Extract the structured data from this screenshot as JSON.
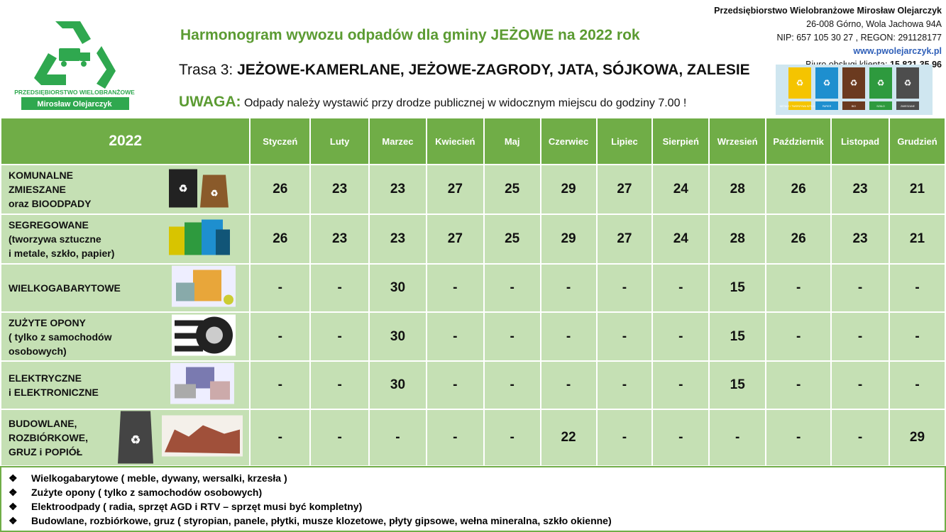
{
  "logo": {
    "line1": "PRZEDSIĘBIORSTWO WIELOBRANŻOWE",
    "line2": "Mirosław Olejarczyk"
  },
  "header": {
    "title": "Harmonogram wywozu odpadów dla gminy JEŻOWE na 2022 rok",
    "route_prefix": "Trasa 3:",
    "route": "JEŻOWE-KAMERLANE, JEŻOWE-ZAGRODY, JATA, SÓJKOWA, ZALESIE",
    "warning_label": "UWAGA:",
    "warning": "Odpady należy wystawić przy drodze publicznej w widocznym miejscu do godziny 7.00 !"
  },
  "company": {
    "name": "Przedsiębiorstwo Wielobranżowe Mirosław Olejarczyk",
    "address": "26-008 Górno, Wola Jachowa 94A",
    "ids": "NIP: 657 105 30 27 , REGON: 291128177",
    "website": "www.pwolejarczyk.pl",
    "phone_label": "Biuro obsługi klienta:",
    "phone": "15 821 35 96"
  },
  "bins": [
    {
      "color": "#f5c400",
      "label": "METALE I TWORZYWA SZTUCZNE"
    },
    {
      "color": "#1e8fcf",
      "label": "PAPIER"
    },
    {
      "color": "#6b3a1f",
      "label": "BIO"
    },
    {
      "color": "#2e9a3e",
      "label": "SZKŁO"
    },
    {
      "color": "#4d4d4d",
      "label": "ZMIESZANE"
    }
  ],
  "table": {
    "year": "2022",
    "months": [
      "Styczeń",
      "Luty",
      "Marzec",
      "Kwiecień",
      "Maj",
      "Czerwiec",
      "Lipiec",
      "Sierpień",
      "Wrzesień",
      "Październik",
      "Listopad",
      "Grudzień"
    ],
    "rows": [
      {
        "label": [
          "KOMUNALNE",
          "ZMIESZANE",
          "oraz BIOODPADY"
        ],
        "icon": "mixed-waste-bin-and-bio-bag-icon",
        "values": [
          "26",
          "23",
          "23",
          "27",
          "25",
          "29",
          "27",
          "24",
          "28",
          "26",
          "23",
          "21"
        ]
      },
      {
        "label": [
          "SEGREGOWANE",
          "(tworzywa sztuczne",
          "i metale, szkło, papier)"
        ],
        "icon": "segregation-bins-icon",
        "values": [
          "26",
          "23",
          "23",
          "27",
          "25",
          "29",
          "27",
          "24",
          "28",
          "26",
          "23",
          "21"
        ]
      },
      {
        "label": [
          "WIELKOGABARYTOWE"
        ],
        "icon": "bulky-furniture-icon",
        "values": [
          "-",
          "-",
          "30",
          "-",
          "-",
          "-",
          "-",
          "-",
          "15",
          "-",
          "-",
          "-"
        ]
      },
      {
        "label": [
          "ZUŻYTE OPONY",
          "( tylko z samochodów",
          "osobowych)"
        ],
        "icon": "tires-icon",
        "values": [
          "-",
          "-",
          "30",
          "-",
          "-",
          "-",
          "-",
          "-",
          "15",
          "-",
          "-",
          "-"
        ]
      },
      {
        "label": [
          "ELEKTRYCZNE",
          " i ELEKTRONICZNE"
        ],
        "icon": "electronics-icon",
        "values": [
          "-",
          "-",
          "30",
          "-",
          "-",
          "-",
          "-",
          "-",
          "15",
          "-",
          "-",
          "-"
        ]
      },
      {
        "label": [
          "BUDOWLANE,",
          "ROZBIÓRKOWE,",
          "GRUZ i POPIÓŁ"
        ],
        "icon": "rubble-bag-icon",
        "values": [
          "-",
          "-",
          "-",
          "-",
          "-",
          "22",
          "-",
          "-",
          "-",
          "-",
          "-",
          "29"
        ]
      }
    ]
  },
  "notes": [
    "Wielkogabarytowe ( meble, dywany, wersalki, krzesła )",
    "Zużyte opony ( tylko z samochodów osobowych)",
    "Elektroodpady ( radia, sprzęt AGD i RTV – sprzęt musi być kompletny)",
    "Budowlane, rozbiórkowe, gruz ( styropian, panele, płytki, musze klozetowe, płyty gipsowe, wełna mineralna, szkło okienne)"
  ],
  "note_bullet": "❖"
}
